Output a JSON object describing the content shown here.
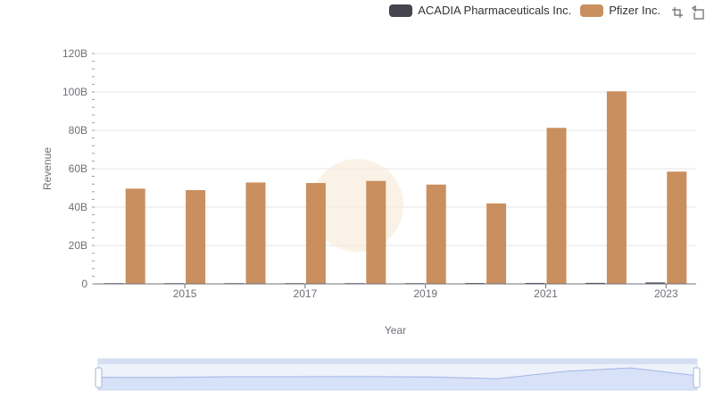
{
  "legend": {
    "items": [
      {
        "name": "ACADIA Pharmaceuticals Inc.",
        "color": "#454550"
      },
      {
        "name": "Pfizer Inc.",
        "color": "#c98f5e"
      }
    ]
  },
  "toolbox": {
    "icons": [
      "zoom-icon",
      "restore-icon"
    ]
  },
  "chart_data": {
    "type": "bar",
    "x": [
      2014,
      2015,
      2016,
      2017,
      2018,
      2019,
      2020,
      2021,
      2022,
      2023
    ],
    "xticks": [
      "2015",
      "2017",
      "2019",
      "2021",
      "2023"
    ],
    "xlabel": "Year",
    "ylabel": "Revenue",
    "yticks": [
      "0",
      "20B",
      "40B",
      "60B",
      "80B",
      "100B",
      "120B"
    ],
    "ylim": [
      0,
      120000000000
    ],
    "grid": true,
    "legend_position": "top-right",
    "series": [
      {
        "name": "ACADIA Pharmaceuticals Inc.",
        "color": "#454550",
        "values": [
          38000000,
          17000000,
          125000000,
          224000000,
          223000000,
          339000000,
          442000000,
          484000000,
          517000000,
          727000000
        ]
      },
      {
        "name": "Pfizer Inc.",
        "color": "#c98f5e",
        "values": [
          49605000000,
          48851000000,
          52824000000,
          52546000000,
          53647000000,
          51750000000,
          41908000000,
          81288000000,
          100330000000,
          58496000000
        ]
      }
    ]
  }
}
